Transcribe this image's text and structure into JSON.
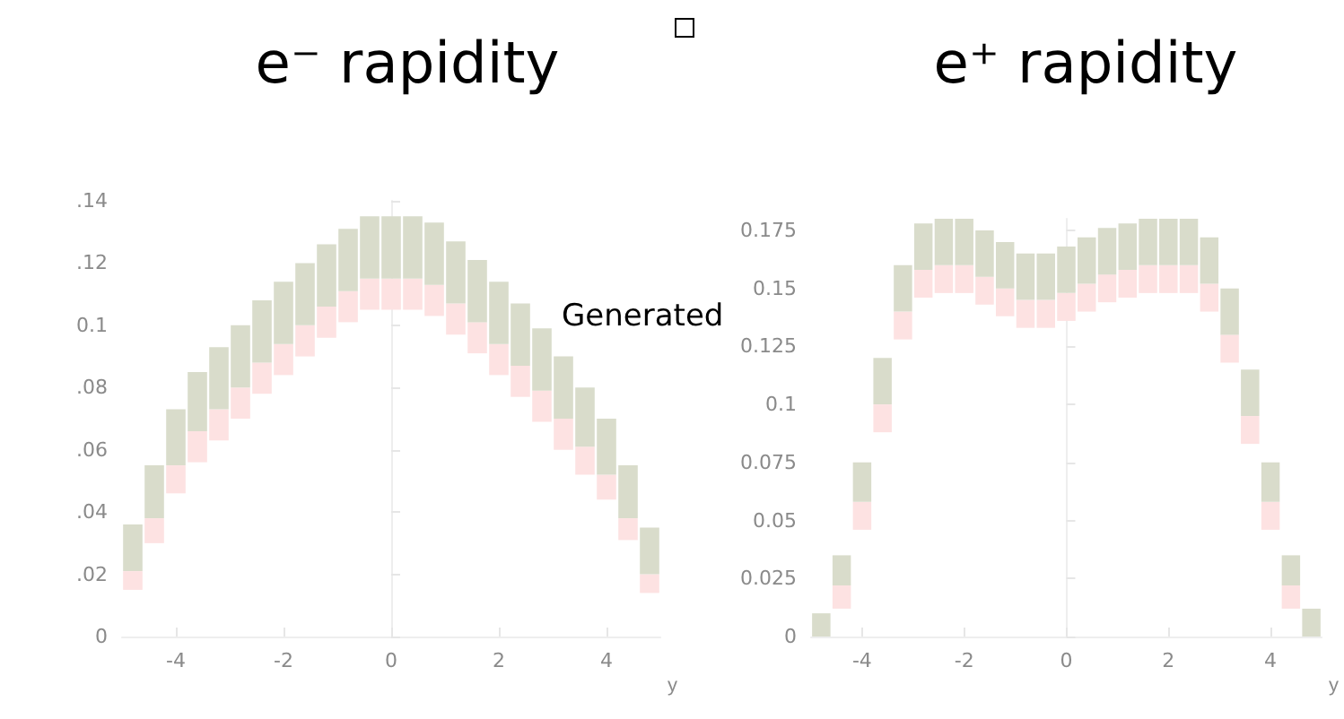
{
  "chart_data": [
    {
      "type": "bar",
      "title": "e⁻ rapidity",
      "xlabel": "y",
      "annotations": [
        "Generated"
      ],
      "x": [
        -4.8,
        -4.4,
        -4.0,
        -3.6,
        -3.2,
        -2.8,
        -2.4,
        -2.0,
        -1.6,
        -1.2,
        -0.8,
        -0.4,
        0,
        0.4,
        0.8,
        1.2,
        1.6,
        2.0,
        2.4,
        2.8,
        3.2,
        3.6,
        4.0,
        4.4,
        4.8
      ],
      "series": [
        {
          "color": "#fde2e2",
          "base": [
            0.015,
            0.03,
            0.046,
            0.056,
            0.063,
            0.07,
            0.078,
            0.084,
            0.09,
            0.096,
            0.101,
            0.105,
            0.105,
            0.105,
            0.103,
            0.097,
            0.091,
            0.084,
            0.077,
            0.069,
            0.06,
            0.052,
            0.044,
            0.031,
            0.014
          ],
          "values": [
            0.006,
            0.008,
            0.009,
            0.01,
            0.01,
            0.01,
            0.01,
            0.01,
            0.01,
            0.01,
            0.01,
            0.01,
            0.01,
            0.01,
            0.01,
            0.01,
            0.01,
            0.01,
            0.01,
            0.01,
            0.01,
            0.009,
            0.008,
            0.007,
            0.006
          ]
        },
        {
          "color": "#d9dccb",
          "base": [
            0.021,
            0.038,
            0.055,
            0.066,
            0.073,
            0.08,
            0.088,
            0.094,
            0.1,
            0.106,
            0.111,
            0.115,
            0.115,
            0.115,
            0.113,
            0.107,
            0.101,
            0.094,
            0.087,
            0.079,
            0.07,
            0.061,
            0.052,
            0.038,
            0.02
          ],
          "values": [
            0.015,
            0.017,
            0.018,
            0.019,
            0.02,
            0.02,
            0.02,
            0.02,
            0.02,
            0.02,
            0.02,
            0.02,
            0.02,
            0.02,
            0.02,
            0.02,
            0.02,
            0.02,
            0.02,
            0.02,
            0.02,
            0.019,
            0.018,
            0.017,
            0.015
          ]
        }
      ],
      "xlim": [
        -5,
        5
      ],
      "xticks": [
        -4,
        -2,
        0,
        2,
        4
      ],
      "ylim": [
        0,
        0.14
      ],
      "yticks": [
        0,
        {
          "value": 0.02,
          "label": ".02"
        },
        {
          "value": 0.04,
          "label": ".04"
        },
        {
          "value": 0.06,
          "label": ".06"
        },
        {
          "value": 0.08,
          "label": ".08"
        },
        0.1,
        {
          "value": 0.12,
          "label": ".12"
        },
        {
          "value": 0.14,
          "label": ".14"
        }
      ]
    },
    {
      "type": "bar",
      "title": "e⁺ rapidity",
      "xlabel": "y",
      "x": [
        -4.8,
        -4.4,
        -4.0,
        -3.6,
        -3.2,
        -2.8,
        -2.4,
        -2.0,
        -1.6,
        -1.2,
        -0.8,
        -0.4,
        0,
        0.4,
        0.8,
        1.2,
        1.6,
        2.0,
        2.4,
        2.8,
        3.2,
        3.6,
        4.0,
        4.4,
        4.8
      ],
      "series": [
        {
          "color": "#fde2e2",
          "base": [
            null,
            0.012,
            0.046,
            0.088,
            0.128,
            0.146,
            0.148,
            0.148,
            0.143,
            0.138,
            0.133,
            0.133,
            0.136,
            0.14,
            0.144,
            0.146,
            0.148,
            0.148,
            0.148,
            0.14,
            0.118,
            0.083,
            0.046,
            0.012,
            null
          ],
          "values": [
            null,
            0.01,
            0.012,
            0.012,
            0.012,
            0.012,
            0.012,
            0.012,
            0.012,
            0.012,
            0.012,
            0.012,
            0.012,
            0.012,
            0.012,
            0.012,
            0.012,
            0.012,
            0.012,
            0.012,
            0.012,
            0.012,
            0.012,
            0.01,
            null
          ]
        },
        {
          "color": "#d9dccb",
          "base": [
            0,
            0.022,
            0.058,
            0.1,
            0.14,
            0.158,
            0.16,
            0.16,
            0.155,
            0.15,
            0.145,
            0.145,
            0.148,
            0.152,
            0.156,
            0.158,
            0.16,
            0.16,
            0.16,
            0.152,
            0.13,
            0.095,
            0.058,
            0.022,
            0
          ],
          "values": [
            0.01,
            0.013,
            0.017,
            0.02,
            0.02,
            0.02,
            0.02,
            0.02,
            0.02,
            0.02,
            0.02,
            0.02,
            0.02,
            0.02,
            0.02,
            0.02,
            0.02,
            0.02,
            0.02,
            0.02,
            0.02,
            0.02,
            0.017,
            0.013,
            0.012
          ]
        }
      ],
      "xlim": [
        -5,
        5
      ],
      "xticks": [
        -4,
        -2,
        0,
        2,
        4
      ],
      "ylim": [
        0,
        0.18
      ],
      "yticks": [
        0,
        0.025,
        0.05,
        0.075,
        0.1,
        0.125,
        0.15,
        0.175
      ]
    }
  ]
}
